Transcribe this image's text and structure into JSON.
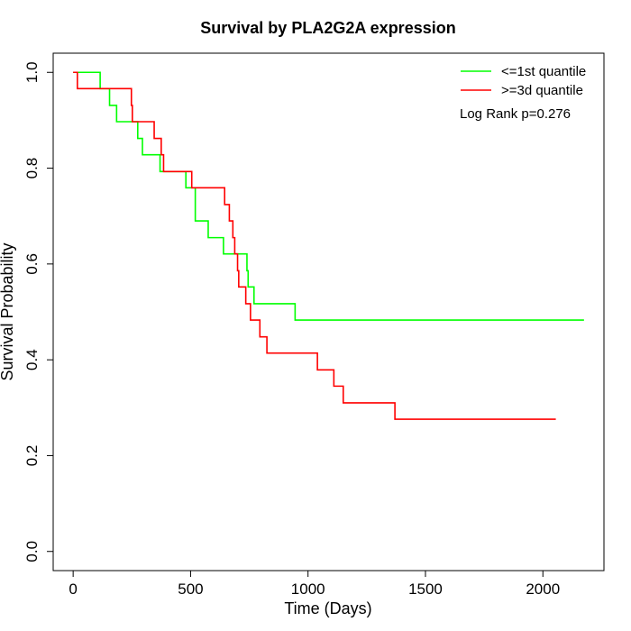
{
  "chart_data": {
    "type": "line",
    "title": "Survival by PLA2G2A expression",
    "xlabel": "Time (Days)",
    "ylabel": "Survival Probability",
    "xlim": [
      -85,
      2260
    ],
    "ylim": [
      -0.04,
      1.04
    ],
    "x_ticks": [
      0,
      500,
      1000,
      1500,
      2000
    ],
    "y_ticks": [
      0.0,
      0.2,
      0.4,
      0.6,
      0.8,
      1.0
    ],
    "x_tick_labels": [
      "0",
      "500",
      "1000",
      "1500",
      "2000"
    ],
    "y_tick_labels": [
      "0.0",
      "0.2",
      "0.4",
      "0.6",
      "0.8",
      "1.0"
    ],
    "grid": false,
    "legend_position": "top-right",
    "annotation": "Log Rank p=0.276",
    "series": [
      {
        "name": "<=1st quantile",
        "color": "#00ff00",
        "step": true,
        "points": [
          [
            0,
            1.0
          ],
          [
            115,
            1.0
          ],
          [
            115,
            0.966
          ],
          [
            155,
            0.966
          ],
          [
            155,
            0.931
          ],
          [
            185,
            0.931
          ],
          [
            185,
            0.897
          ],
          [
            275,
            0.897
          ],
          [
            275,
            0.862
          ],
          [
            295,
            0.862
          ],
          [
            295,
            0.828
          ],
          [
            370,
            0.828
          ],
          [
            370,
            0.793
          ],
          [
            480,
            0.793
          ],
          [
            480,
            0.759
          ],
          [
            520,
            0.759
          ],
          [
            520,
            0.69
          ],
          [
            575,
            0.69
          ],
          [
            575,
            0.655
          ],
          [
            640,
            0.655
          ],
          [
            640,
            0.621
          ],
          [
            740,
            0.621
          ],
          [
            740,
            0.586
          ],
          [
            745,
            0.586
          ],
          [
            745,
            0.552
          ],
          [
            770,
            0.552
          ],
          [
            770,
            0.517
          ],
          [
            945,
            0.517
          ],
          [
            945,
            0.483
          ],
          [
            2175,
            0.483
          ]
        ]
      },
      {
        "name": ">=3d quantile",
        "color": "#ff0000",
        "step": true,
        "points": [
          [
            0,
            1.0
          ],
          [
            18,
            1.0
          ],
          [
            18,
            0.966
          ],
          [
            248,
            0.966
          ],
          [
            248,
            0.931
          ],
          [
            252,
            0.931
          ],
          [
            252,
            0.897
          ],
          [
            345,
            0.897
          ],
          [
            345,
            0.862
          ],
          [
            375,
            0.862
          ],
          [
            375,
            0.828
          ],
          [
            385,
            0.828
          ],
          [
            385,
            0.793
          ],
          [
            505,
            0.793
          ],
          [
            505,
            0.759
          ],
          [
            645,
            0.759
          ],
          [
            645,
            0.724
          ],
          [
            665,
            0.724
          ],
          [
            665,
            0.69
          ],
          [
            680,
            0.69
          ],
          [
            680,
            0.655
          ],
          [
            688,
            0.655
          ],
          [
            688,
            0.621
          ],
          [
            700,
            0.621
          ],
          [
            700,
            0.586
          ],
          [
            705,
            0.586
          ],
          [
            705,
            0.552
          ],
          [
            735,
            0.552
          ],
          [
            735,
            0.517
          ],
          [
            755,
            0.517
          ],
          [
            755,
            0.483
          ],
          [
            795,
            0.483
          ],
          [
            795,
            0.448
          ],
          [
            825,
            0.448
          ],
          [
            825,
            0.414
          ],
          [
            1040,
            0.414
          ],
          [
            1040,
            0.379
          ],
          [
            1110,
            0.379
          ],
          [
            1110,
            0.345
          ],
          [
            1150,
            0.345
          ],
          [
            1150,
            0.31
          ],
          [
            1370,
            0.31
          ],
          [
            1370,
            0.276
          ],
          [
            2055,
            0.276
          ]
        ]
      }
    ]
  }
}
